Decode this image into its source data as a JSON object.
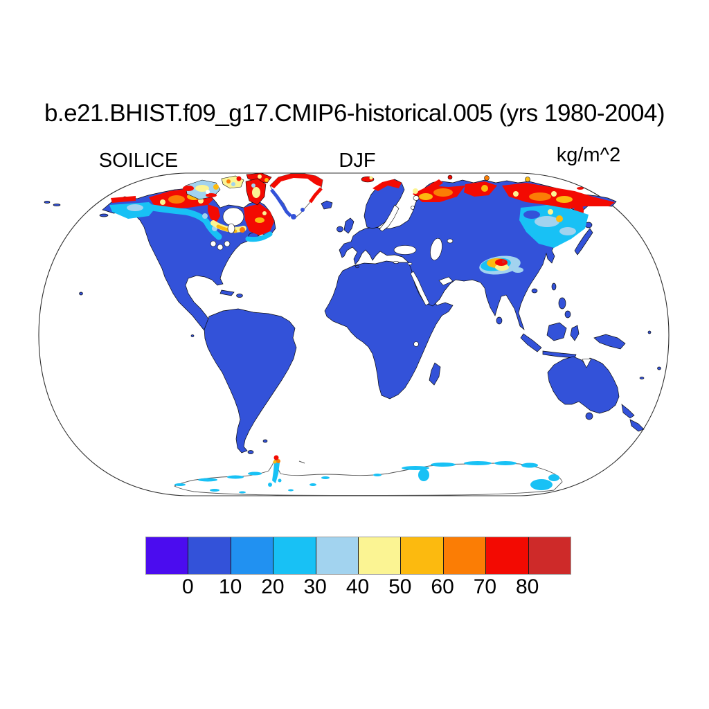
{
  "title": "b.e21.BHIST.f09_g17.CMIP6-historical.005 (yrs 1980-2004)",
  "subtitles": {
    "variable": "SOILICE",
    "season": "DJF",
    "units": "kg/m^2"
  },
  "colorbar": {
    "tick_labels": [
      "0",
      "10",
      "20",
      "30",
      "40",
      "50",
      "60",
      "70",
      "80"
    ],
    "segment_colors": [
      "#4B0CEF",
      "#3352D9",
      "#2191F1",
      "#18C1F5",
      "#A2D3EF",
      "#FBF493",
      "#FCBA0F",
      "#FB7D05",
      "#F30A02",
      "#CE2A29"
    ]
  },
  "palette": {
    "ocean": "#FFFFFF",
    "land_low_value": "#3352D9",
    "coastline": "#0B0B0B",
    "projection_outline": "#2F2F2F",
    "antarctica_coastline": "#555555"
  },
  "chart_data": {
    "type": "heatmap",
    "subtype": "global-filled-contour-map",
    "projection": "robinson",
    "title": "b.e21.BHIST.f09_g17.CMIP6-historical.005 (yrs 1980-2004)",
    "variable": "SOILICE",
    "season": "DJF",
    "units": "kg/m^2",
    "levels": [
      0,
      10,
      20,
      30,
      40,
      50,
      60,
      70,
      80
    ],
    "level_colors": [
      "#4B0CEF",
      "#3352D9",
      "#2191F1",
      "#18C1F5",
      "#A2D3EF",
      "#FBF493",
      "#FCBA0F",
      "#FB7D05",
      "#F30A02",
      "#CE2A29"
    ],
    "legend_position": "bottom",
    "grid": false,
    "ocean_masked": true,
    "regions": [
      {
        "region": "Most mid-latitude and tropical land (contiguous US, Europe, S Asia, Africa, S America, Australia)",
        "value_kg_m2": "0-10"
      },
      {
        "region": "Interior Alaska",
        "value_kg_m2": "20-40"
      },
      {
        "region": "Northwest Canada / Yukon",
        "value_kg_m2": "70-90"
      },
      {
        "region": "Canadian Arctic Archipelago",
        "value_kg_m2": "30-90 (mixed red/orange/yellow/pale-blue patches)"
      },
      {
        "region": "Quebec / Labrador east of Hudson Bay",
        "value_kg_m2": "60-90"
      },
      {
        "region": "Southern Canada transition belt",
        "value_kg_m2": "20-40"
      },
      {
        "region": "Greenland interior ice sheet",
        "value_kg_m2": "no data (white)"
      },
      {
        "region": "Greenland northern/eastern coastal fringe",
        "value_kg_m2": "70-90"
      },
      {
        "region": "Greenland western/southern coastal fringe",
        "value_kg_m2": "0-10"
      },
      {
        "region": "Svalbard and Novaya Zemlya",
        "value_kg_m2": "60-90"
      },
      {
        "region": "Arctic Siberian coast (Taymyr to Chukotka)",
        "value_kg_m2": "70-90"
      },
      {
        "region": "Eastern Siberia / Sea of Okhotsk hinterland",
        "value_kg_m2": "20-40"
      },
      {
        "region": "Tibetan Plateau core",
        "value_kg_m2": "50-90 (red core, orange/yellow ring)"
      },
      {
        "region": "Tibetan Plateau margin",
        "value_kg_m2": "20-40"
      },
      {
        "region": "Antarctic coastal fringe and Peninsula",
        "value_kg_m2": "20-40 (small 60-90 spot at Peninsula tip)"
      },
      {
        "region": "Antarctic interior ice sheet",
        "value_kg_m2": "no data (white)"
      }
    ]
  }
}
